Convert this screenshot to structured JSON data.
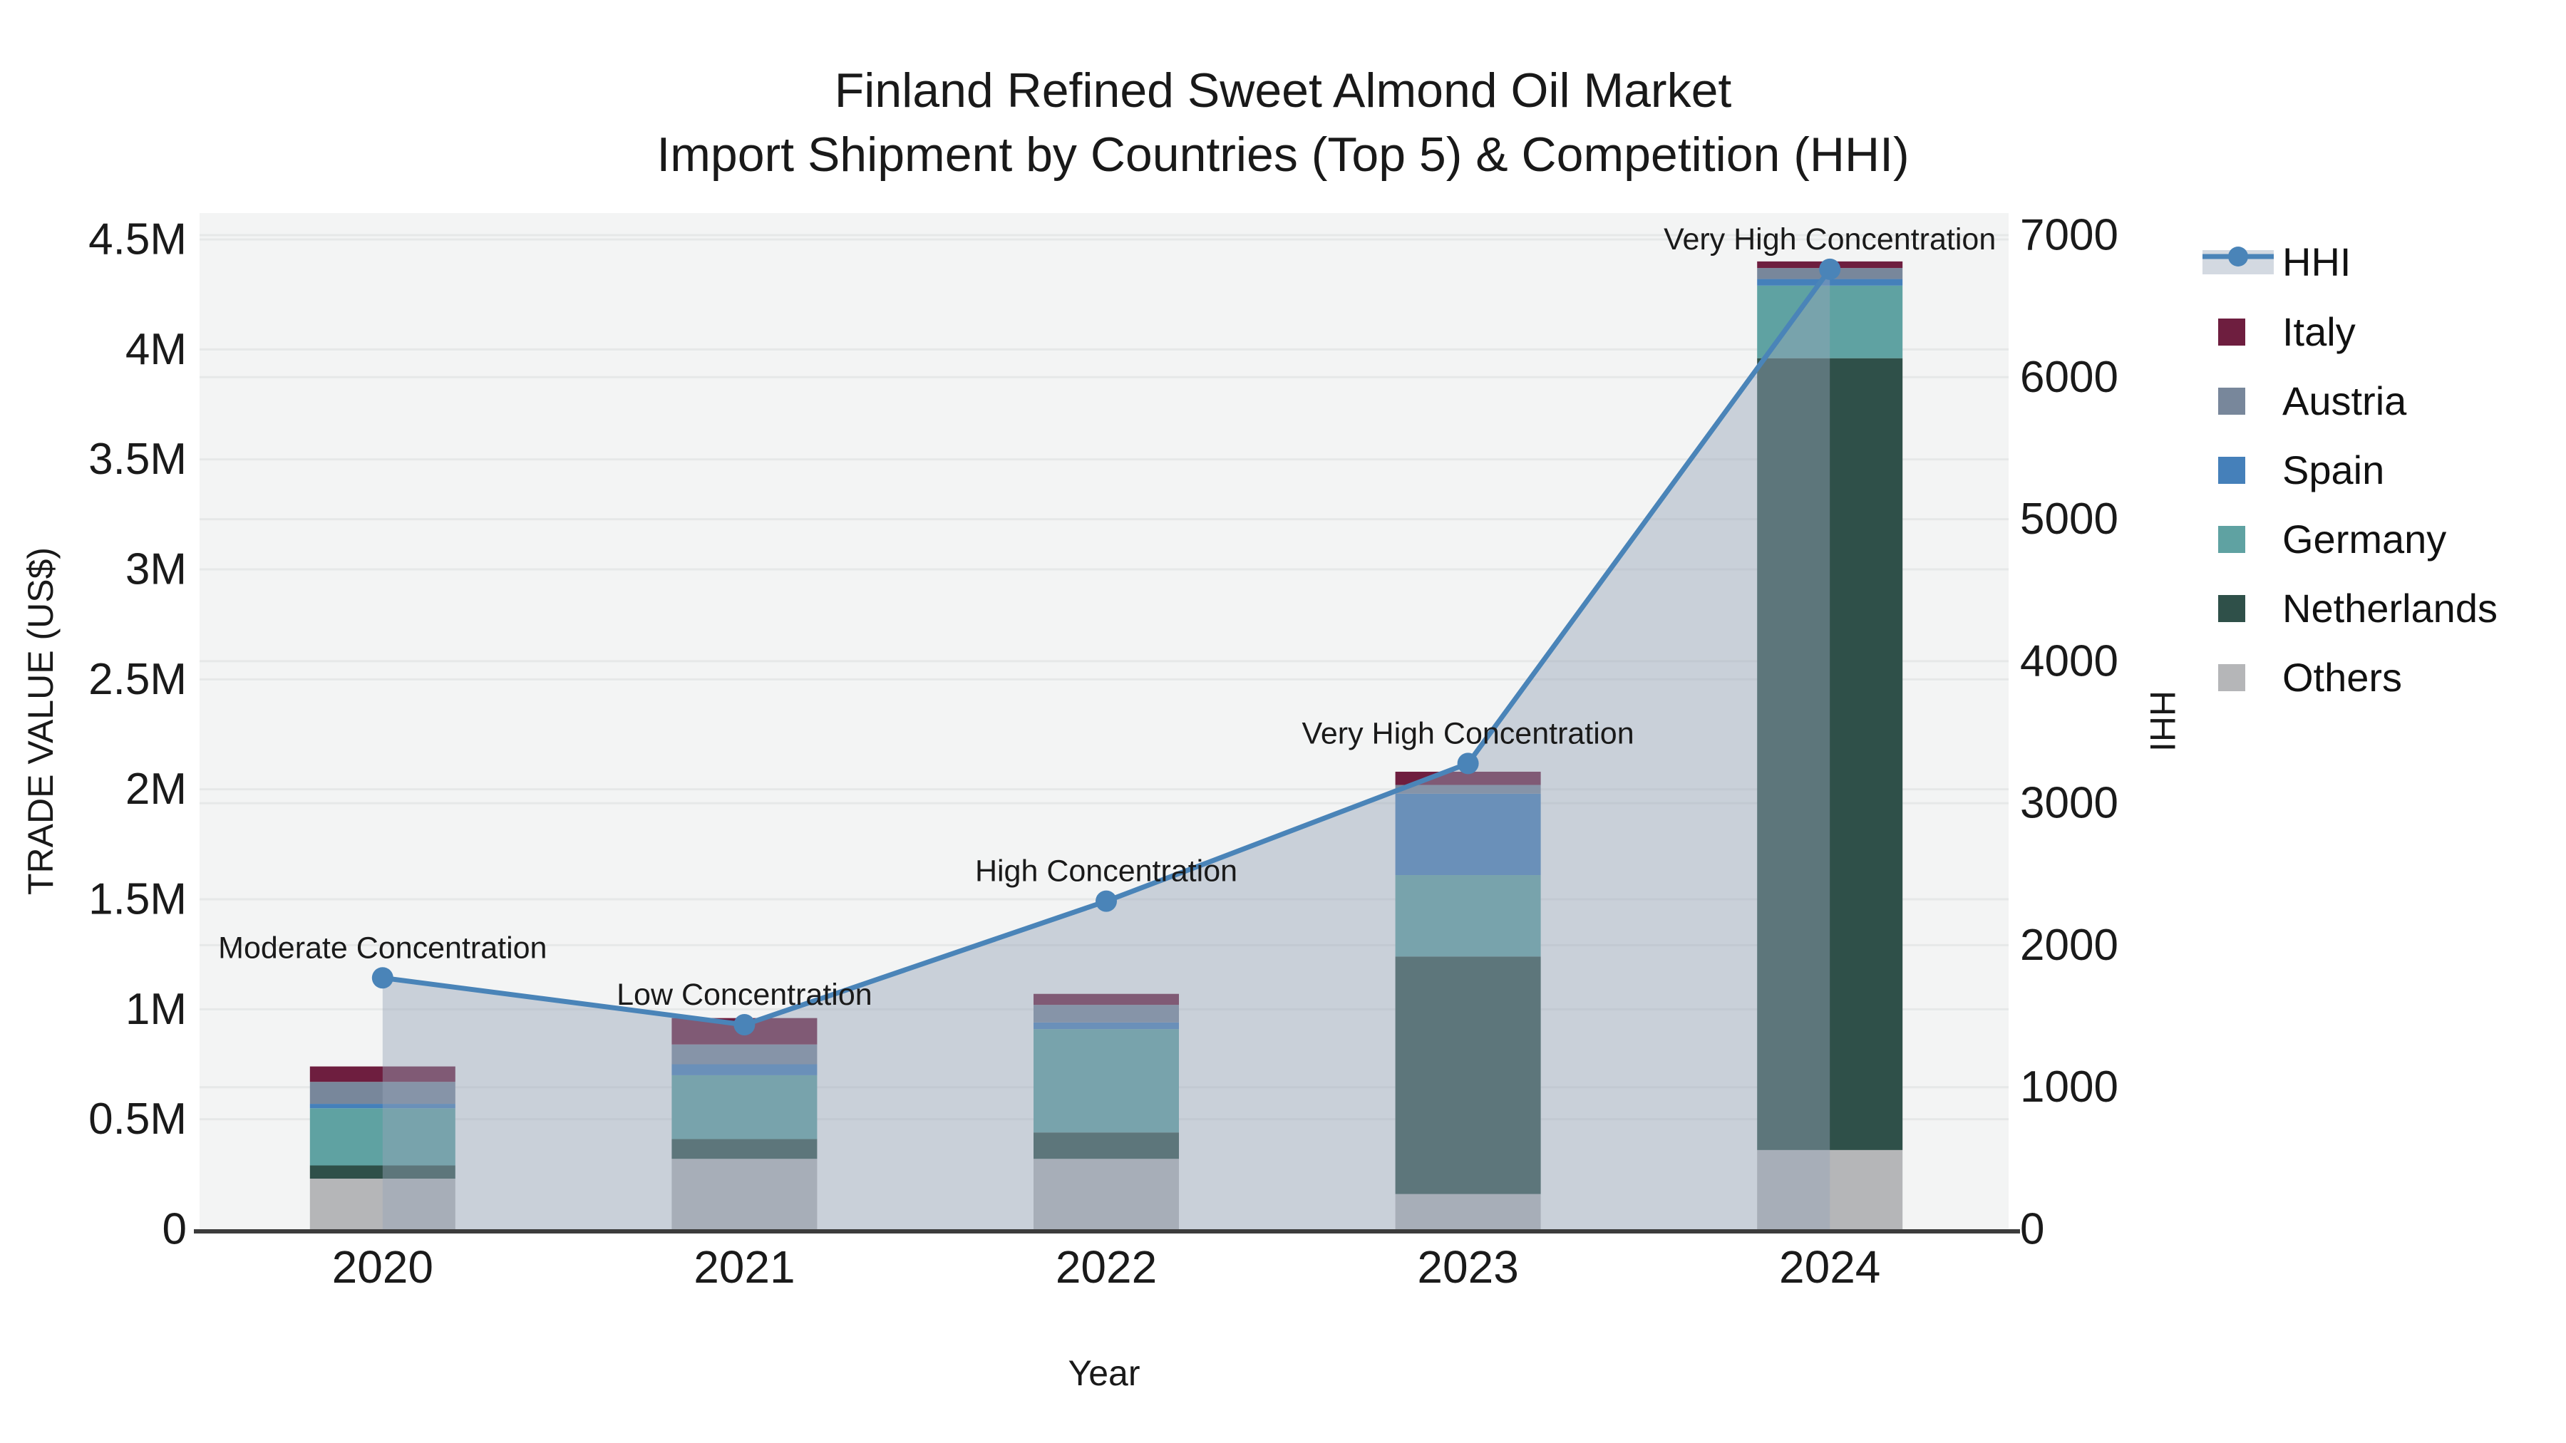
{
  "title": {
    "line1": "Finland Refined Sweet Almond Oil Market",
    "line2": "Import Shipment by Countries (Top 5) & Competition (HHI)"
  },
  "axes": {
    "left": {
      "title": "TRADE VALUE (US$)",
      "tick_labels": [
        "0",
        "0.5M",
        "1M",
        "1.5M",
        "2M",
        "2.5M",
        "3M",
        "3.5M",
        "4M",
        "4.5M"
      ],
      "tick_values_musd": [
        0,
        0.5,
        1,
        1.5,
        2,
        2.5,
        3,
        3.5,
        4,
        4.5
      ]
    },
    "right": {
      "title": "HHI",
      "tick_labels": [
        "0",
        "1000",
        "2000",
        "3000",
        "4000",
        "5000",
        "6000",
        "7000"
      ],
      "tick_values": [
        0,
        1000,
        2000,
        3000,
        4000,
        5000,
        6000,
        7000
      ]
    },
    "x": {
      "title": "Year",
      "tick_labels": [
        "2020",
        "2021",
        "2022",
        "2023",
        "2024"
      ]
    }
  },
  "legend": {
    "items": [
      {
        "label": "HHI",
        "type": "line-band",
        "color": "#4a84b8",
        "band_color": "#d3d9e1"
      },
      {
        "label": "Italy",
        "type": "swatch",
        "color": "#6e1e3f"
      },
      {
        "label": "Austria",
        "type": "swatch",
        "color": "#78879b"
      },
      {
        "label": "Spain",
        "type": "swatch",
        "color": "#4580ba"
      },
      {
        "label": "Germany",
        "type": "swatch",
        "color": "#5fa2a2"
      },
      {
        "label": "Netherlands",
        "type": "swatch",
        "color": "#2f5049"
      },
      {
        "label": "Others",
        "type": "swatch",
        "color": "#b5b6b8"
      }
    ]
  },
  "colors": {
    "plot_background": "#f3f4f4",
    "gridline": "#e6e8e8",
    "axis_line": "#3c3c3c",
    "hhi_line": "#4a84b8",
    "hhi_area_fill": "#96a5b9",
    "hhi_area_opacity": 0.45,
    "text": "#1a1a1a",
    "annotation_text": "#000000"
  },
  "chart_data": {
    "type": "bar",
    "subtype": "stacked-bars-with-line-overlay",
    "title": "Finland Refined Sweet Almond Oil Market — Import Shipment by Countries (Top 5) & Competition (HHI)",
    "xlabel": "Year",
    "ylabel": "TRADE VALUE (US$)",
    "ylabel_right": "HHI",
    "ylim_left_musd": [
      0,
      4.5
    ],
    "ylim_right": [
      0,
      7000
    ],
    "grid": true,
    "legend_position": "right-outside",
    "categories": [
      2020,
      2021,
      2022,
      2023,
      2024
    ],
    "series": [
      {
        "name": "Italy",
        "color": "#6e1e3f",
        "values_musd": [
          0.07,
          0.12,
          0.05,
          0.06,
          0.03
        ]
      },
      {
        "name": "Austria",
        "color": "#78879b",
        "values_musd": [
          0.1,
          0.09,
          0.08,
          0.04,
          0.05
        ]
      },
      {
        "name": "Spain",
        "color": "#4580ba",
        "values_musd": [
          0.02,
          0.05,
          0.03,
          0.37,
          0.03
        ]
      },
      {
        "name": "Germany",
        "color": "#5fa2a2",
        "values_musd": [
          0.26,
          0.29,
          0.47,
          0.37,
          0.33
        ]
      },
      {
        "name": "Netherlands",
        "color": "#2f5049",
        "values_musd": [
          0.06,
          0.09,
          0.12,
          1.08,
          3.6
        ]
      },
      {
        "name": "Others",
        "color": "#b5b6b8",
        "values_musd": [
          0.23,
          0.32,
          0.32,
          0.16,
          0.36
        ]
      }
    ],
    "stack_order_bottom_to_top": [
      "Others",
      "Netherlands",
      "Germany",
      "Spain",
      "Austria",
      "Italy"
    ],
    "bar_totals_musd": [
      0.74,
      0.96,
      1.07,
      2.08,
      4.4
    ],
    "hhi_line": {
      "name": "HHI",
      "axis": "right",
      "values": [
        1770,
        1440,
        2310,
        3280,
        6760
      ],
      "marker": "circle",
      "area_fill": true
    },
    "annotations": [
      {
        "x": 2020,
        "text": "Moderate Concentration"
      },
      {
        "x": 2021,
        "text": "Low Concentration"
      },
      {
        "x": 2022,
        "text": "High Concentration"
      },
      {
        "x": 2023,
        "text": "Very High Concentration"
      },
      {
        "x": 2024,
        "text": "Very High Concentration"
      }
    ]
  }
}
